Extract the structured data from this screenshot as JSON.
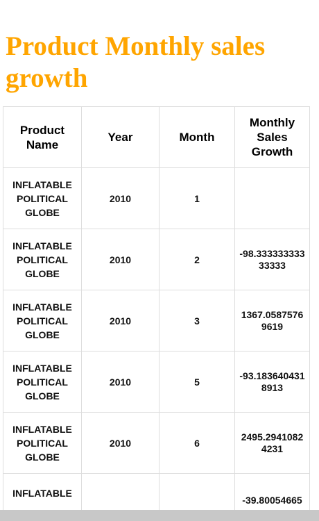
{
  "page": {
    "title": "Product Monthly sales growth"
  },
  "table": {
    "headers": [
      "Product Name",
      "Year",
      "Month",
      "Monthly Sales Growth"
    ],
    "rows": [
      {
        "product": "INFLATABLE POLITICAL GLOBE",
        "year": "2010",
        "month": "1",
        "growth": ""
      },
      {
        "product": "INFLATABLE POLITICAL GLOBE",
        "year": "2010",
        "month": "2",
        "growth": "-98.33333333333333"
      },
      {
        "product": "INFLATABLE POLITICAL GLOBE",
        "year": "2010",
        "month": "3",
        "growth": "1367.05875769619"
      },
      {
        "product": "INFLATABLE POLITICAL GLOBE",
        "year": "2010",
        "month": "5",
        "growth": "-93.1836404318913"
      },
      {
        "product": "INFLATABLE POLITICAL GLOBE",
        "year": "2010",
        "month": "6",
        "growth": "2495.29410824231"
      },
      {
        "product": "INFLATABLE",
        "year": "",
        "month": "",
        "growth": "-39.80054665"
      }
    ]
  },
  "colors": {
    "title": "#ffa500",
    "border": "#dddddd",
    "scrollbar": "#c8c8c8"
  }
}
